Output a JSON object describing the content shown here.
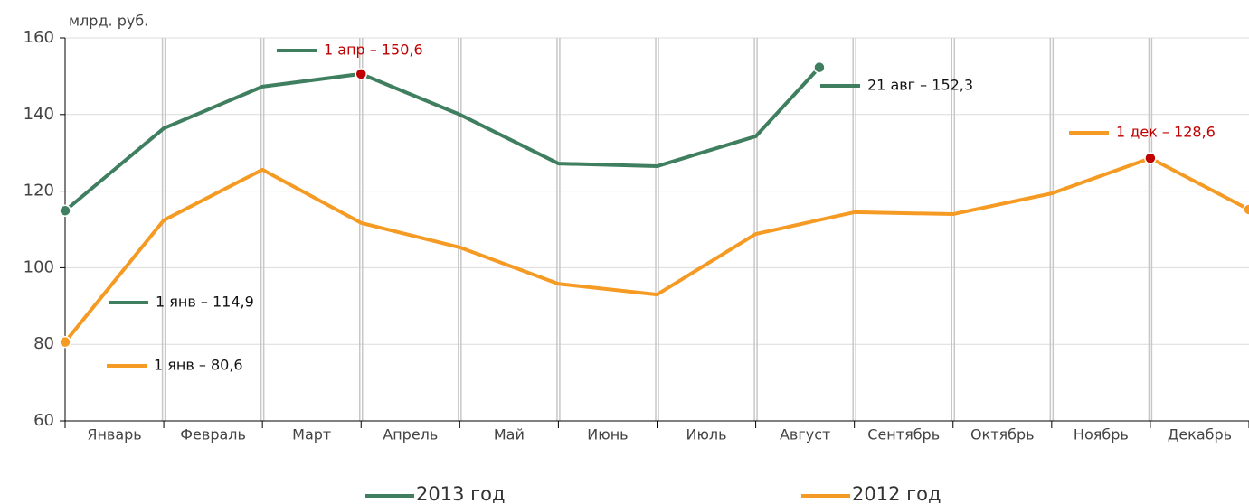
{
  "chart_data": {
    "type": "line",
    "y_label": "млрд. руб.",
    "categories": [
      "Январь",
      "Февраль",
      "Март",
      "Апрель",
      "Май",
      "Июнь",
      "Июль",
      "Август",
      "Сентябрь",
      "Октябрь",
      "Ноябрь",
      "Декабрь"
    ],
    "xlim": [
      0,
      12
    ],
    "xticks": [
      0,
      1,
      2,
      3,
      4,
      5,
      6,
      7,
      8,
      9,
      10,
      11,
      12
    ],
    "ylim": [
      60,
      160
    ],
    "yticks": [
      60,
      80,
      100,
      120,
      140,
      160
    ],
    "grid": true,
    "series": [
      {
        "name": "2013 год",
        "color": "#3f7f5f",
        "x": [
          0,
          1,
          2,
          3,
          4,
          5,
          6,
          7,
          7.645
        ],
        "values": [
          114.9,
          136.4,
          147.3,
          150.6,
          140,
          127.2,
          126.5,
          134.3,
          152.3
        ]
      },
      {
        "name": "2012 год",
        "color": "#f59a23",
        "x": [
          0,
          1,
          2,
          3,
          4,
          5,
          6,
          7,
          8,
          9,
          10,
          11,
          12
        ],
        "values": [
          80.6,
          112.4,
          125.6,
          111.7,
          105.3,
          95.8,
          93,
          108.8,
          114.5,
          114,
          119.4,
          128.6,
          115.2
        ]
      }
    ],
    "annotations": [
      {
        "text": "1 апр – 150,6",
        "series": 0,
        "point": 3,
        "color": "#c00000"
      },
      {
        "text": "21 авг – 152,3",
        "series": 0,
        "point": 8,
        "color": "#111111"
      },
      {
        "text": "1 дек – 128,6",
        "series": 1,
        "point": 11,
        "color": "#c00000"
      },
      {
        "text": "1 янв – 114,9",
        "series": 0,
        "point": 0,
        "color": "#111111"
      },
      {
        "text": "1 янв – 80,6",
        "series": 1,
        "point": 0,
        "color": "#111111"
      }
    ]
  }
}
